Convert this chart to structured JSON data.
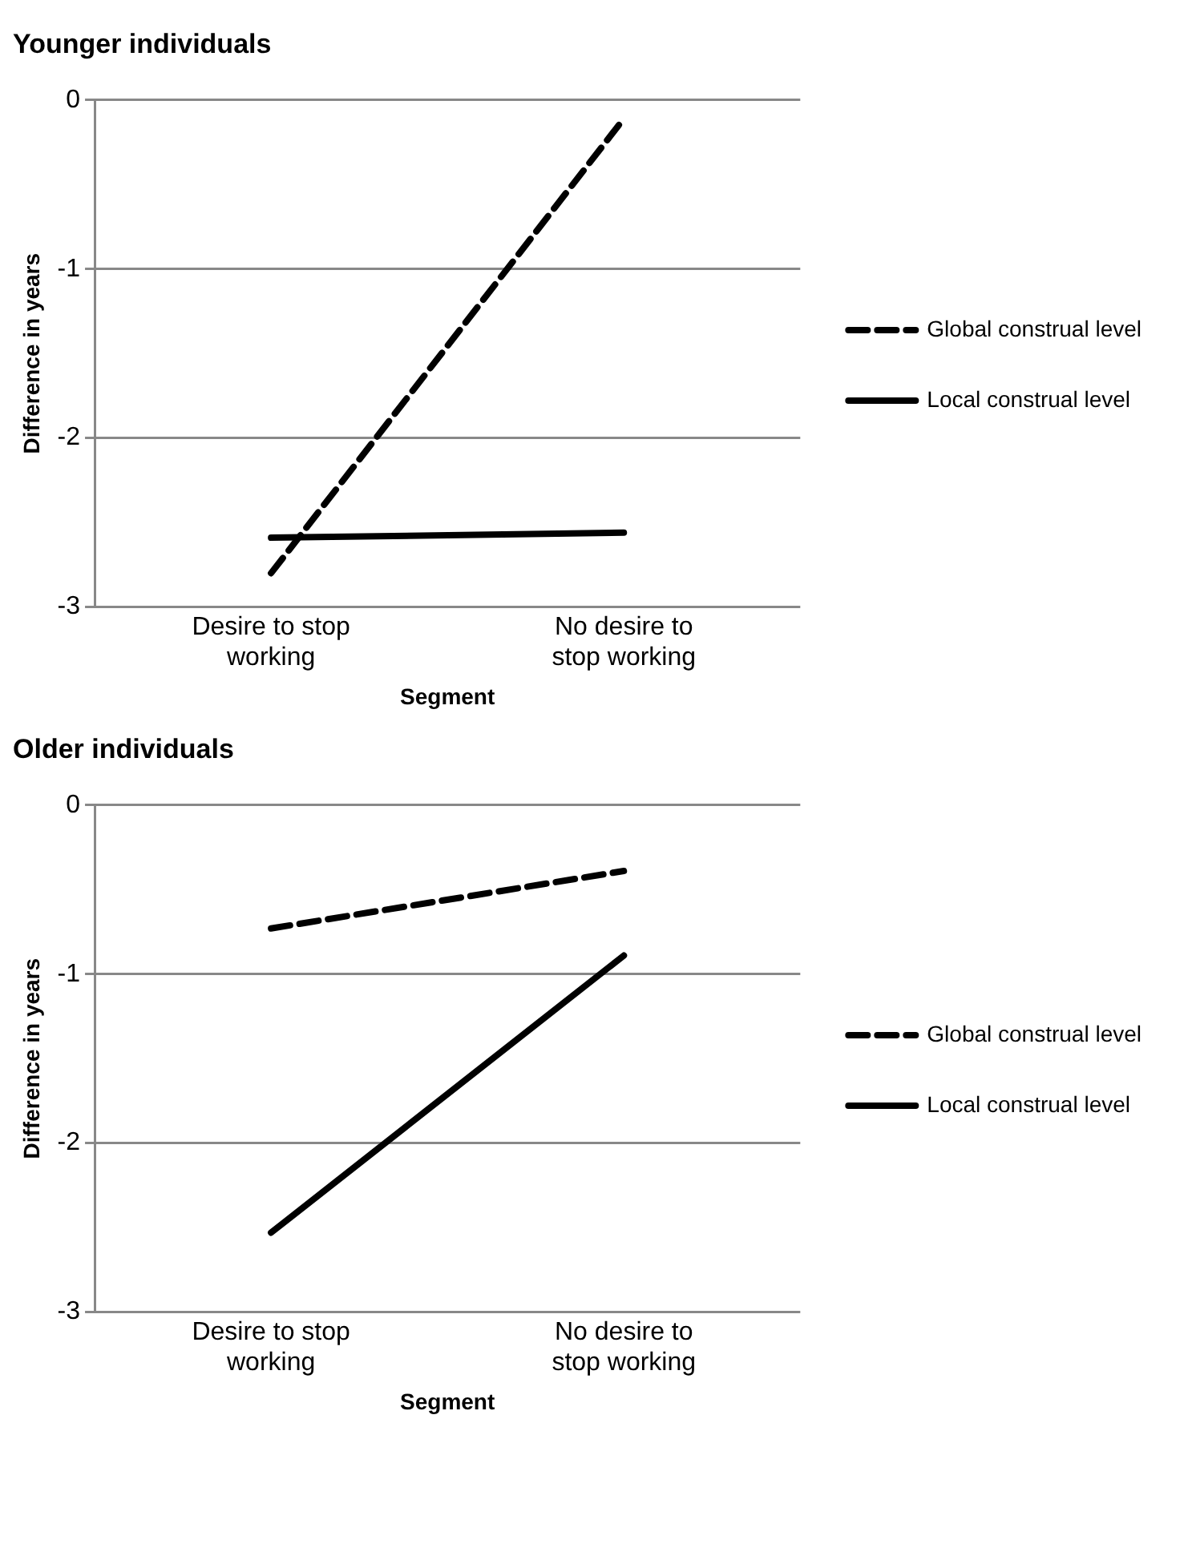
{
  "chart_data": [
    {
      "type": "line",
      "title": "Younger individuals",
      "xlabel": "Segment",
      "ylabel": "Difference in years",
      "categories": [
        "Desire to stop working",
        "No desire to stop working"
      ],
      "series": [
        {
          "name": "Global construal level",
          "color": "#000000",
          "values": [
            -2.8,
            -0.11
          ],
          "line_style": "dashed"
        },
        {
          "name": "Local construal level",
          "color": "#000000",
          "values": [
            -2.59,
            -2.56
          ],
          "line_style": "solid"
        }
      ],
      "ylim": [
        -3,
        0
      ],
      "yticks": [
        -3,
        -2,
        -1,
        0
      ],
      "grid": "y",
      "legend": "right",
      "marker": "none"
    },
    {
      "type": "line",
      "title": "Older individuals",
      "xlabel": "Segment",
      "ylabel": "Difference in years",
      "categories": [
        "Desire to stop working",
        "No desire to stop working"
      ],
      "series": [
        {
          "name": "Global construal level",
          "color": "#000000",
          "values": [
            -0.73,
            -0.39
          ],
          "line_style": "dashed"
        },
        {
          "name": "Local construal level",
          "color": "#000000",
          "values": [
            -2.53,
            -0.89
          ],
          "line_style": "solid"
        }
      ],
      "ylim": [
        -3,
        0
      ],
      "yticks": [
        -3,
        -2,
        -1,
        0
      ],
      "grid": "y",
      "legend": "right",
      "marker": "none"
    }
  ]
}
